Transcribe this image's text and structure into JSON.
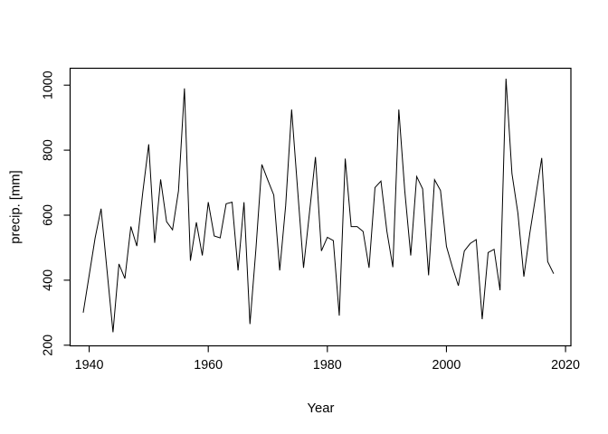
{
  "figure": {
    "background": "#ffffff",
    "foreground": "#000000"
  },
  "chart_data": {
    "type": "line",
    "title": "",
    "xlabel": "Year",
    "ylabel": "precip. [mm]",
    "legend": null,
    "grid": false,
    "line_color": "#000000",
    "x_ticks": [
      1940,
      1960,
      1980,
      2000,
      2020
    ],
    "y_ticks": [
      200,
      400,
      600,
      800,
      1000
    ],
    "xlim": [
      1936.8,
      2020.9
    ],
    "ylim": [
      198,
      1052
    ],
    "x": [
      1939,
      1940,
      1941,
      1942,
      1943,
      1944,
      1945,
      1946,
      1947,
      1948,
      1949,
      1950,
      1951,
      1952,
      1953,
      1954,
      1955,
      1956,
      1957,
      1958,
      1959,
      1960,
      1961,
      1962,
      1963,
      1964,
      1965,
      1966,
      1967,
      1968,
      1969,
      1970,
      1971,
      1972,
      1973,
      1974,
      1975,
      1976,
      1977,
      1978,
      1979,
      1980,
      1981,
      1982,
      1983,
      1984,
      1985,
      1986,
      1987,
      1988,
      1989,
      1990,
      1991,
      1992,
      1993,
      1994,
      1995,
      1996,
      1997,
      1998,
      1999,
      2000,
      2001,
      2002,
      2003,
      2004,
      2005,
      2006,
      2007,
      2008,
      2009,
      2010,
      2011,
      2012,
      2013,
      2014,
      2015,
      2016,
      2017,
      2018
    ],
    "values": [
      300,
      415,
      530,
      620,
      430,
      240,
      450,
      405,
      565,
      505,
      670,
      818,
      515,
      710,
      580,
      555,
      675,
      990,
      460,
      578,
      476,
      640,
      536,
      530,
      635,
      640,
      430,
      640,
      265,
      495,
      756,
      708,
      662,
      430,
      630,
      925,
      680,
      438,
      608,
      779,
      490,
      532,
      522,
      291,
      774,
      565,
      565,
      550,
      438,
      685,
      705,
      550,
      440,
      925,
      675,
      476,
      719,
      681,
      415,
      709,
      676,
      504,
      440,
      383,
      490,
      513,
      525,
      280,
      485,
      495,
      369,
      1020,
      728,
      606,
      411,
      545,
      660,
      776,
      457,
      420
    ]
  }
}
